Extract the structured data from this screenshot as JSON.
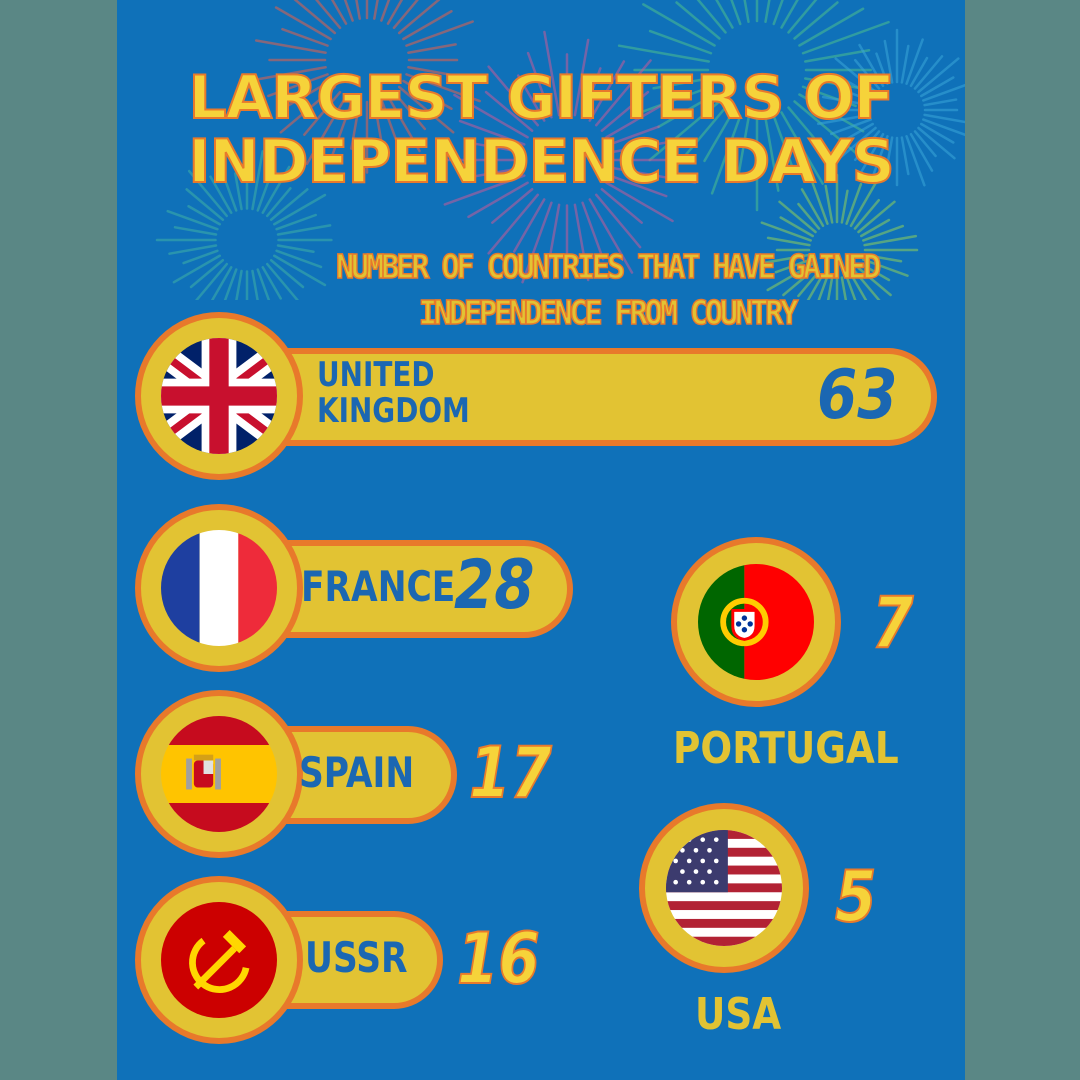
{
  "title_line1": "LARGEST GIFTERS OF",
  "title_line2": "INDEPENDENCE DAYS",
  "subtitle_line1": "NUMBER OF COUNTRIES THAT HAVE GAINED",
  "subtitle_line2": "INDEPENDENCE FROM COUNTRY",
  "colors": {
    "background": "#0f71b9",
    "bar_fill": "#e2c333",
    "bar_outline": "#e8792b",
    "label_text": "#1b67b2"
  },
  "chart_data": {
    "type": "bar",
    "categories": [
      "United Kingdom",
      "France",
      "Spain",
      "USSR",
      "Portugal",
      "USA"
    ],
    "values": [
      63,
      28,
      17,
      16,
      7,
      5
    ],
    "title": "LARGEST GIFTERS OF INDEPENDENCE DAYS",
    "subtitle": "NUMBER OF COUNTRIES THAT HAVE GAINED INDEPENDENCE FROM COUNTRY",
    "items": [
      {
        "label_line1": "UNITED",
        "label_line2": "KINGDOM",
        "value": "63",
        "flag": "union-jack-icon"
      },
      {
        "label_line1": "FRANCE",
        "value": "28",
        "flag": "french-flag-icon"
      },
      {
        "label_line1": "SPAIN",
        "value": "17",
        "flag": "spanish-flag-icon"
      },
      {
        "label_line1": "USSR",
        "value": "16",
        "flag": "ussr-flag-icon"
      },
      {
        "label_line1": "PORTUGAL",
        "value": "7",
        "flag": "portuguese-flag-icon"
      },
      {
        "label_line1": "USA",
        "value": "5",
        "flag": "us-flag-icon"
      }
    ]
  }
}
